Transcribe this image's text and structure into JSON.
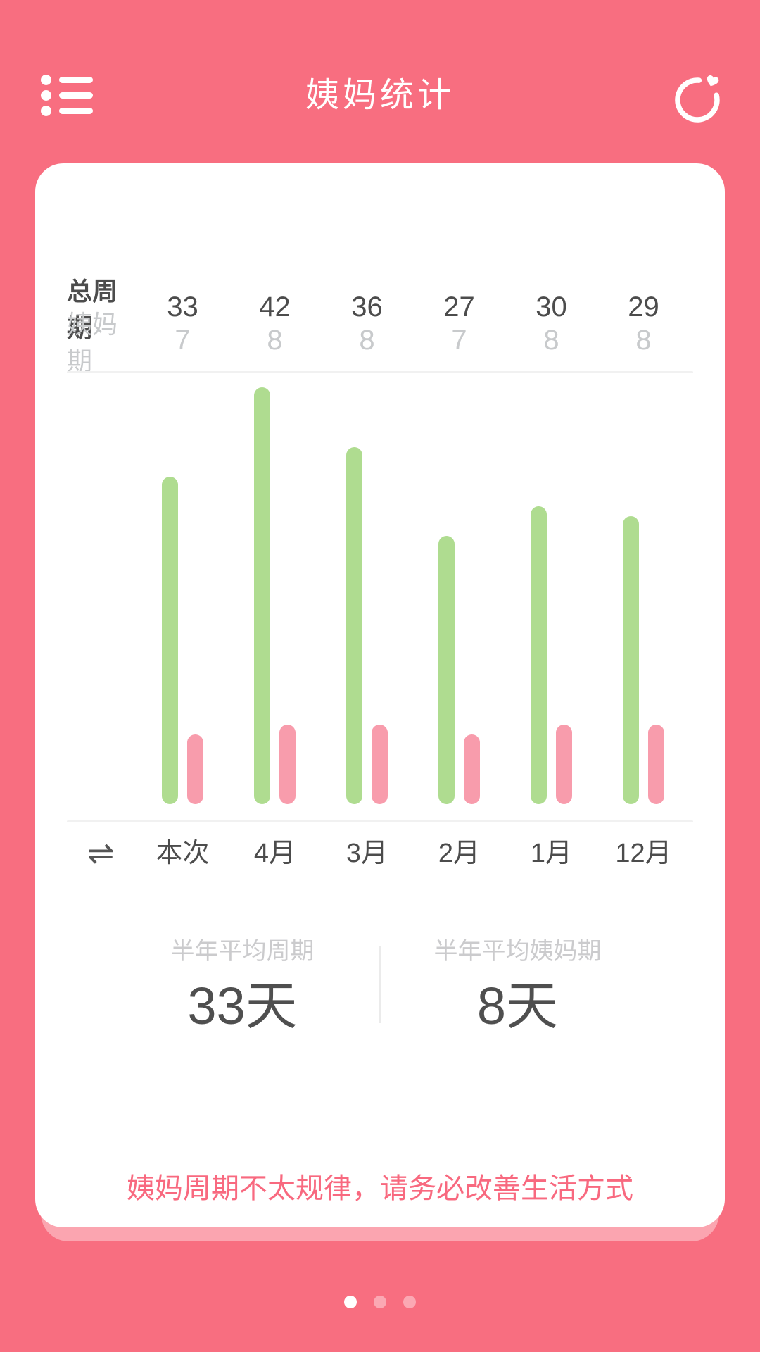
{
  "header": {
    "title": "姨妈统计",
    "menu_icon": "list-menu-icon",
    "sync_icon": "sync-heart-icon"
  },
  "table": {
    "rows": [
      {
        "label": "总周期",
        "values": [
          33,
          42,
          36,
          27,
          30,
          29
        ]
      },
      {
        "label": "姨妈期",
        "values": [
          7,
          8,
          8,
          7,
          8,
          8
        ]
      }
    ]
  },
  "chart_data": {
    "type": "bar",
    "categories": [
      "本次",
      "4月",
      "3月",
      "2月",
      "1月",
      "12月"
    ],
    "series": [
      {
        "name": "总周期",
        "color": "#AFDC90",
        "values": [
          33,
          42,
          36,
          27,
          30,
          29
        ]
      },
      {
        "name": "姨妈期",
        "color": "#F89CAC",
        "values": [
          7,
          8,
          8,
          7,
          8,
          8
        ]
      }
    ],
    "ylim": [
      0,
      42
    ],
    "grid": false,
    "legend_position": "none",
    "title": "",
    "xlabel": "",
    "ylabel": ""
  },
  "axis": {
    "swap_glyph": "⇌",
    "swap_icon": "swap-arrows-icon"
  },
  "averages": {
    "left": {
      "label": "半年平均周期",
      "value": "33天"
    },
    "right": {
      "label": "半年平均姨妈期",
      "value": "8天"
    }
  },
  "warning": "姨妈周期不太规律，请务必改善生活方式",
  "pagination": {
    "dots": 3,
    "active_index": 0
  },
  "colors": {
    "background": "#F86E80",
    "card": "#FFFFFF",
    "card_shadow": "rgba(255,255,255,0.38)",
    "green_bar": "#AFDC90",
    "pink_bar": "#F89CAC",
    "accent_text": "#F8697F",
    "dark_text": "#4C4C4C",
    "light_text": "#C8CACC"
  }
}
